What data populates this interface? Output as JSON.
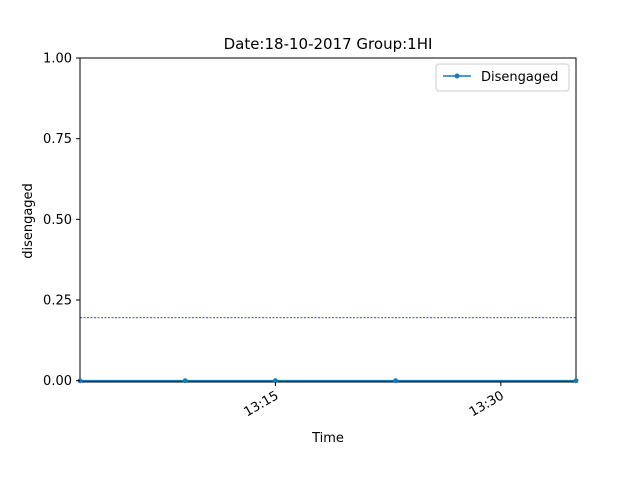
{
  "chart_data": {
    "type": "line",
    "title": "Date:18-10-2017  Group:1HI",
    "xlabel": "Time",
    "ylabel": "disengaged",
    "xlim": [
      "13:02",
      "13:35"
    ],
    "ylim": [
      0,
      1
    ],
    "x_ticks": [
      {
        "time": "13:15",
        "label": "13:15"
      },
      {
        "time": "13:30",
        "label": "13:30"
      }
    ],
    "y_ticks": [
      {
        "value": 0.0,
        "label": "0.00"
      },
      {
        "value": 0.25,
        "label": "0.25"
      },
      {
        "value": 0.5,
        "label": "0.50"
      },
      {
        "value": 0.75,
        "label": "0.75"
      },
      {
        "value": 1.0,
        "label": "1.00"
      }
    ],
    "series": [
      {
        "name": "Disengaged",
        "color": "#1f77b4",
        "points": [
          {
            "x": "13:02",
            "y": 0
          },
          {
            "x": "13:09",
            "y": 0
          },
          {
            "x": "13:15",
            "y": 0
          },
          {
            "x": "13:23",
            "y": 0
          },
          {
            "x": "13:35",
            "y": 0
          }
        ]
      }
    ],
    "reference_line": {
      "y": 0.195,
      "color": "#0000cc",
      "style": "dashed"
    },
    "legend": {
      "position": "top-right",
      "entries": [
        "Disengaged"
      ]
    },
    "grid": false
  }
}
